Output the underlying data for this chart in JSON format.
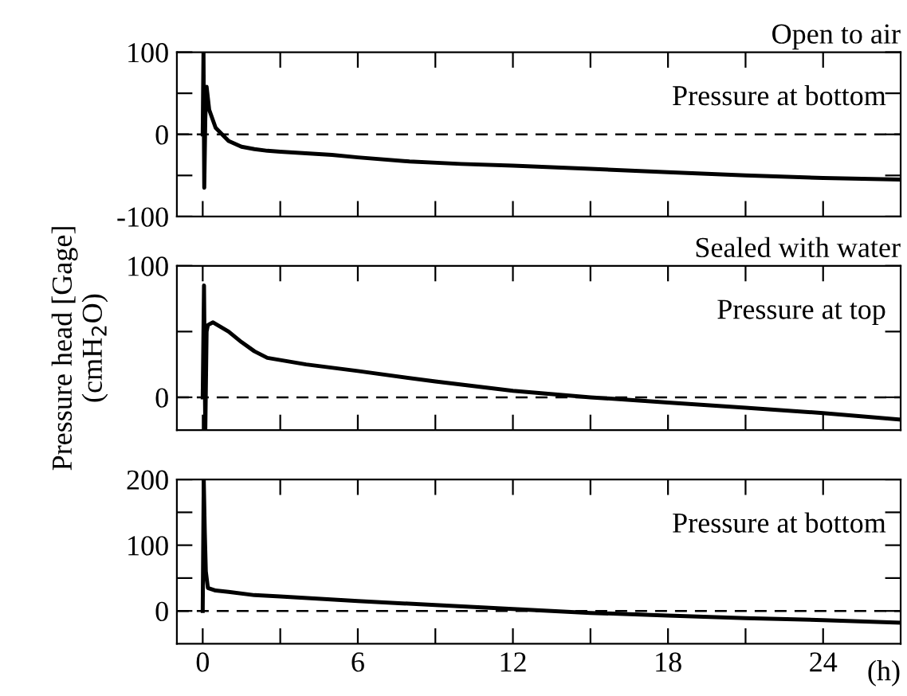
{
  "chart_data": [
    {
      "type": "line",
      "title": "Open to air",
      "annotations": [
        "Pressure at bottom"
      ],
      "xlim": [
        -1,
        27
      ],
      "xticks": [
        0,
        {
          "value": 3,
          "label": null
        },
        6,
        {
          "value": 9,
          "label": null
        },
        12,
        {
          "value": 15,
          "label": null
        },
        18,
        {
          "value": 21,
          "label": null
        },
        24
      ],
      "ylim": [
        -100,
        100
      ],
      "yticks": [
        -100,
        {
          "value": -50,
          "label": null
        },
        0,
        {
          "value": 50,
          "label": null
        },
        100
      ],
      "tick_labels": "y",
      "ref_lines": [
        {
          "axis": "y",
          "value": 0,
          "line_style": "dashed",
          "color": "#000000"
        }
      ],
      "series": [
        {
          "color": "#000000",
          "x": [
            0,
            0.03,
            0.06,
            0.1,
            0.15,
            0.25,
            0.5,
            1,
            1.5,
            2,
            2.5,
            3,
            4,
            5,
            6,
            8,
            10,
            12,
            15,
            18,
            21,
            24,
            27
          ],
          "values": [
            0,
            100,
            -65,
            20,
            58,
            30,
            8,
            -8,
            -15,
            -18,
            -20,
            -21,
            -23,
            -25,
            -28,
            -33,
            -36,
            -38,
            -42,
            -46,
            -50,
            -53,
            -55
          ]
        }
      ]
    },
    {
      "type": "line",
      "title": "Sealed with water",
      "ylabel": "Pressure head [Gage]\n(cmH$_{2}$O)",
      "annotations": [
        "Pressure at top"
      ],
      "xlim": [
        -1,
        27
      ],
      "xticks": [
        0,
        {
          "value": 3,
          "label": null
        },
        6,
        {
          "value": 9,
          "label": null
        },
        12,
        {
          "value": 15,
          "label": null
        },
        18,
        {
          "value": 21,
          "label": null
        },
        24
      ],
      "ylim": [
        -25,
        100
      ],
      "yticks": [
        0,
        {
          "value": 50,
          "label": null
        },
        100
      ],
      "tick_labels": "y",
      "ref_lines": [
        {
          "axis": "y",
          "value": 0,
          "line_style": "dashed",
          "color": "#000000"
        }
      ],
      "series": [
        {
          "color": "#000000",
          "x": [
            0,
            0.05,
            0.1,
            0.15,
            0.2,
            0.4,
            1,
            1.5,
            2,
            2.5,
            4,
            6,
            9,
            12,
            15,
            18,
            21,
            24,
            27
          ],
          "values": [
            0,
            85,
            -25,
            50,
            55,
            57,
            50,
            42,
            35,
            30,
            25,
            20,
            12,
            5,
            0,
            -4,
            -8,
            -12,
            -17
          ]
        }
      ]
    },
    {
      "type": "line",
      "xlabel": "(h)",
      "annotations": [
        "Pressure at bottom"
      ],
      "xlim": [
        -1,
        27
      ],
      "xticks": [
        0,
        {
          "value": 3,
          "label": null
        },
        6,
        {
          "value": 9,
          "label": null
        },
        12,
        {
          "value": 15,
          "label": null
        },
        18,
        {
          "value": 21,
          "label": null
        },
        24
      ],
      "ylim": [
        -50,
        200
      ],
      "yticks": [
        0,
        {
          "value": 50,
          "label": null
        },
        100,
        {
          "value": 150,
          "label": null
        },
        200
      ],
      "ref_lines": [
        {
          "axis": "y",
          "value": 0,
          "line_style": "dashed",
          "color": "#000000"
        }
      ],
      "series": [
        {
          "color": "#000000",
          "x": [
            0,
            0.04,
            0.08,
            0.12,
            0.2,
            0.5,
            1,
            2,
            3,
            6,
            9,
            12,
            15,
            18,
            21,
            24,
            27
          ],
          "values": [
            0,
            200,
            120,
            60,
            35,
            31,
            29,
            24,
            22,
            15,
            9,
            3,
            -3,
            -7,
            -11,
            -14,
            -18
          ]
        }
      ]
    }
  ]
}
